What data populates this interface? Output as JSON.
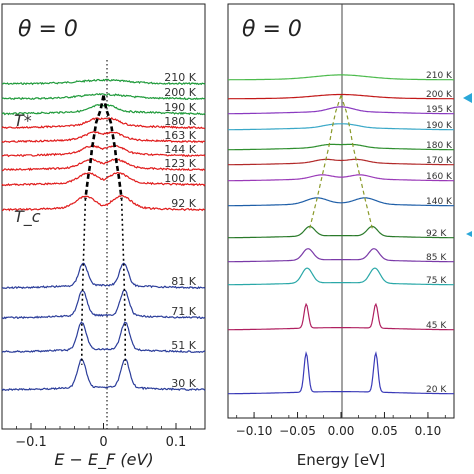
{
  "figure": {
    "left_panel": {
      "title": "θ = 0",
      "xlabel": "E − E_F (eV)",
      "xticks": [
        "−0.1",
        "0",
        "0.1"
      ],
      "annotations": {
        "t_star": "T*",
        "t_c": "T_c"
      },
      "temperature_labels": [
        "210 K",
        "200 K",
        "190 K",
        "180 K",
        "163 K",
        "144 K",
        "123 K",
        "100 K",
        "92 K",
        "81 K",
        "71 K",
        "51 K",
        "30 K"
      ]
    },
    "right_panel": {
      "title": "θ = 0",
      "xlabel": "Energy [eV]",
      "xticks": [
        "−0.10",
        "−0.05",
        "0.00",
        "0.05",
        "0.10"
      ],
      "temperature_labels": [
        "210 K",
        "200 K",
        "195 K",
        "190 K",
        "180 K",
        "170 K",
        "160 K",
        "140 K",
        "92 K",
        "85 K",
        "75 K",
        "45 K",
        "20 K"
      ]
    },
    "colors": {
      "green": "#1f9a3a",
      "red": "#e01b1b",
      "blue": "#2b3d9a",
      "arrow": "#2aa7d8"
    }
  },
  "chart_data": [
    {
      "type": "line",
      "title": "θ = 0",
      "xlabel": "E − E_F (eV)",
      "ylabel": "",
      "xlim": [
        -0.14,
        0.14
      ],
      "xticks": [
        -0.1,
        0,
        0.1
      ],
      "series": [
        {
          "name": "210 K",
          "color": "#1f9a3a",
          "gap": 0.0,
          "peak": 0.4
        },
        {
          "name": "200 K",
          "color": "#1f9a3a",
          "gap": 0.0,
          "peak": 0.5
        },
        {
          "name": "190 K",
          "color": "#1f9a3a",
          "gap": 0.004,
          "peak": 0.6
        },
        {
          "name": "180 K",
          "color": "#e01b1b",
          "gap": 0.01,
          "peak": 0.8
        },
        {
          "name": "163 K",
          "color": "#e01b1b",
          "gap": 0.013,
          "peak": 0.9
        },
        {
          "name": "144 K",
          "color": "#e01b1b",
          "gap": 0.016,
          "peak": 1.0
        },
        {
          "name": "123 K",
          "color": "#e01b1b",
          "gap": 0.018,
          "peak": 1.1
        },
        {
          "name": "100 K",
          "color": "#e01b1b",
          "gap": 0.021,
          "peak": 1.3
        },
        {
          "name": "92 K",
          "color": "#e01b1b",
          "gap": 0.025,
          "peak": 1.6
        },
        {
          "name": "81 K",
          "color": "#2b3d9a",
          "gap": 0.028,
          "peak": 3.2
        },
        {
          "name": "71 K",
          "color": "#2b3d9a",
          "gap": 0.029,
          "peak": 3.6
        },
        {
          "name": "51 K",
          "color": "#2b3d9a",
          "gap": 0.03,
          "peak": 3.9
        },
        {
          "name": "30 K",
          "color": "#2b3d9a",
          "gap": 0.03,
          "peak": 4.0
        }
      ]
    },
    {
      "type": "line",
      "title": "θ = 0",
      "xlabel": "Energy [eV]",
      "ylabel": "",
      "xlim": [
        -0.13,
        0.13
      ],
      "xticks": [
        -0.1,
        -0.05,
        0.0,
        0.05,
        0.1
      ],
      "series": [
        {
          "name": "210 K",
          "color": "#4dbb4d",
          "gap": 0.0,
          "peak": 0.7
        },
        {
          "name": "200 K",
          "color": "#c21818",
          "gap": 0.0,
          "peak": 0.6
        },
        {
          "name": "195 K",
          "color": "#8a3ac0",
          "gap": 0.006,
          "peak": 0.45
        },
        {
          "name": "190 K",
          "color": "#3aa8c8",
          "gap": 0.01,
          "peak": 0.45
        },
        {
          "name": "180 K",
          "color": "#2f8f2f",
          "gap": 0.014,
          "peak": 0.5
        },
        {
          "name": "170 K",
          "color": "#b22a2a",
          "gap": 0.018,
          "peak": 0.55
        },
        {
          "name": "160 K",
          "color": "#9a3ab8",
          "gap": 0.022,
          "peak": 0.65
        },
        {
          "name": "140 K",
          "color": "#1f5fa8",
          "gap": 0.028,
          "peak": 1.0
        },
        {
          "name": "92 K",
          "color": "#2a7a2a",
          "gap": 0.036,
          "peak": 1.6
        },
        {
          "name": "85 K",
          "color": "#7a3aa8",
          "gap": 0.038,
          "peak": 1.9
        },
        {
          "name": "75 K",
          "color": "#2aa8a8",
          "gap": 0.039,
          "peak": 2.5
        },
        {
          "name": "45 K",
          "color": "#b02060",
          "gap": 0.04,
          "peak": 4.0
        },
        {
          "name": "20 K",
          "color": "#3a3ab8",
          "gap": 0.04,
          "peak": 6.5
        }
      ]
    }
  ]
}
